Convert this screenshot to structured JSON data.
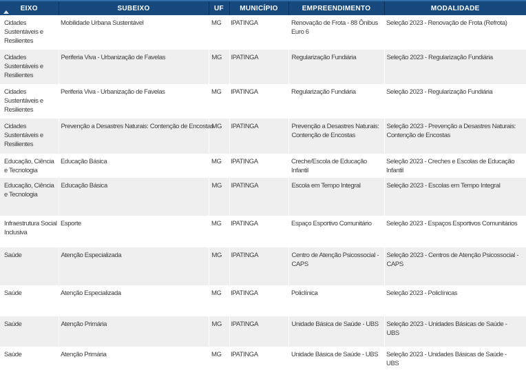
{
  "colors": {
    "header_background": "#17497D",
    "header_top_strip": "#2E6DA8",
    "header_text": "#FFFFFF",
    "header_separator": "#0C3257",
    "row_alt_background": "#EFEFEF",
    "body_text": "#3D3D3D"
  },
  "table": {
    "sort_icon": "sort-ascending-triangle",
    "columns": [
      {
        "key": "eixo",
        "label": "EIXO",
        "sorted": true
      },
      {
        "key": "subeixo",
        "label": "SUBEIXO",
        "sorted": false
      },
      {
        "key": "uf",
        "label": "UF",
        "sorted": false
      },
      {
        "key": "municipio",
        "label": "MUNICÍPIO",
        "sorted": false
      },
      {
        "key": "empreendimento",
        "label": "EMPREENDIMENTO",
        "sorted": false
      },
      {
        "key": "modalidade",
        "label": "MODALIDADE",
        "sorted": false
      }
    ],
    "rows": [
      {
        "eixo": "Cidades Sustentáveis e Resilientes",
        "subeixo": "Mobilidade Urbana Sustentável",
        "uf": "MG",
        "municipio": "IPATINGA",
        "empreendimento": "Renovação de Frota - 88 Ônibus Euro 6",
        "modalidade": "Seleção 2023 - Renovação de Frota (Refrota)"
      },
      {
        "eixo": "Cidades Sustentáveis e Resilientes",
        "subeixo": "Periferia Viva - Urbanização de Favelas",
        "uf": "MG",
        "municipio": "IPATINGA",
        "empreendimento": "Regularização Fundiária",
        "modalidade": "Seleção 2023 - Regularização Fundiária"
      },
      {
        "eixo": "Cidades Sustentáveis e Resilientes",
        "subeixo": "Periferia Viva - Urbanização de Favelas",
        "uf": "MG",
        "municipio": "IPATINGA",
        "empreendimento": "Regularização Fundiária",
        "modalidade": "Seleção 2023 - Regularização Fundiária"
      },
      {
        "eixo": "Cidades Sustentáveis e Resilientes",
        "subeixo": "Prevenção a Desastres Naturais: Contenção de Encostas",
        "uf": "MG",
        "municipio": "IPATINGA",
        "empreendimento": "Prevenção a Desastres Naturais: Contenção de Encostas",
        "modalidade": "Seleção 2023 - Prevenção a Desastres Naturais: Contenção de Encostas"
      },
      {
        "eixo": "Educação, Ciência e Tecnologia",
        "subeixo": "Educação Básica",
        "uf": "MG",
        "municipio": "IPATINGA",
        "empreendimento": "Creche/Escola de Educação Infantil",
        "modalidade": "Seleção 2023 - Creches e Escolas de Educação Infantil"
      },
      {
        "eixo": "Educação, Ciência e Tecnologia",
        "subeixo": "Educação Básica",
        "uf": "MG",
        "municipio": "IPATINGA",
        "empreendimento": "Escola em Tempo Integral",
        "modalidade": "Seleção 2023 - Escolas em Tempo Integral"
      },
      {
        "eixo": "Infraestrutura Social Inclusiva",
        "subeixo": "Esporte",
        "uf": "MG",
        "municipio": "IPATINGA",
        "empreendimento": "Espaço Esportivo Comunitário",
        "modalidade": "Seleção 2023 - Espaços Esportivos Comunitários"
      },
      {
        "eixo": "Saúde",
        "subeixo": "Atenção Especializada",
        "uf": "MG",
        "municipio": "IPATINGA",
        "empreendimento": "Centro de Atenção Psicossocial - CAPS",
        "modalidade": "Seleção 2023 - Centros de Atenção Psicossocial - CAPS"
      },
      {
        "eixo": "Saúde",
        "subeixo": "Atenção Especializada",
        "uf": "MG",
        "municipio": "IPATINGA",
        "empreendimento": "Policlínica",
        "modalidade": "Seleção 2023 - Policlínicas"
      },
      {
        "eixo": "Saúde",
        "subeixo": "Atenção Primária",
        "uf": "MG",
        "municipio": "IPATINGA",
        "empreendimento": "Unidade Básica de Saúde - UBS",
        "modalidade": "Seleção 2023 - Unidades Básicas de Saúde - UBS"
      },
      {
        "eixo": "Saúde",
        "subeixo": "Atenção Primária",
        "uf": "MG",
        "municipio": "IPATINGA",
        "empreendimento": "Unidade Básica de Saúde - UBS",
        "modalidade": "Seleção 2023 - Unidades Básicas de Saúde - UBS"
      }
    ]
  }
}
